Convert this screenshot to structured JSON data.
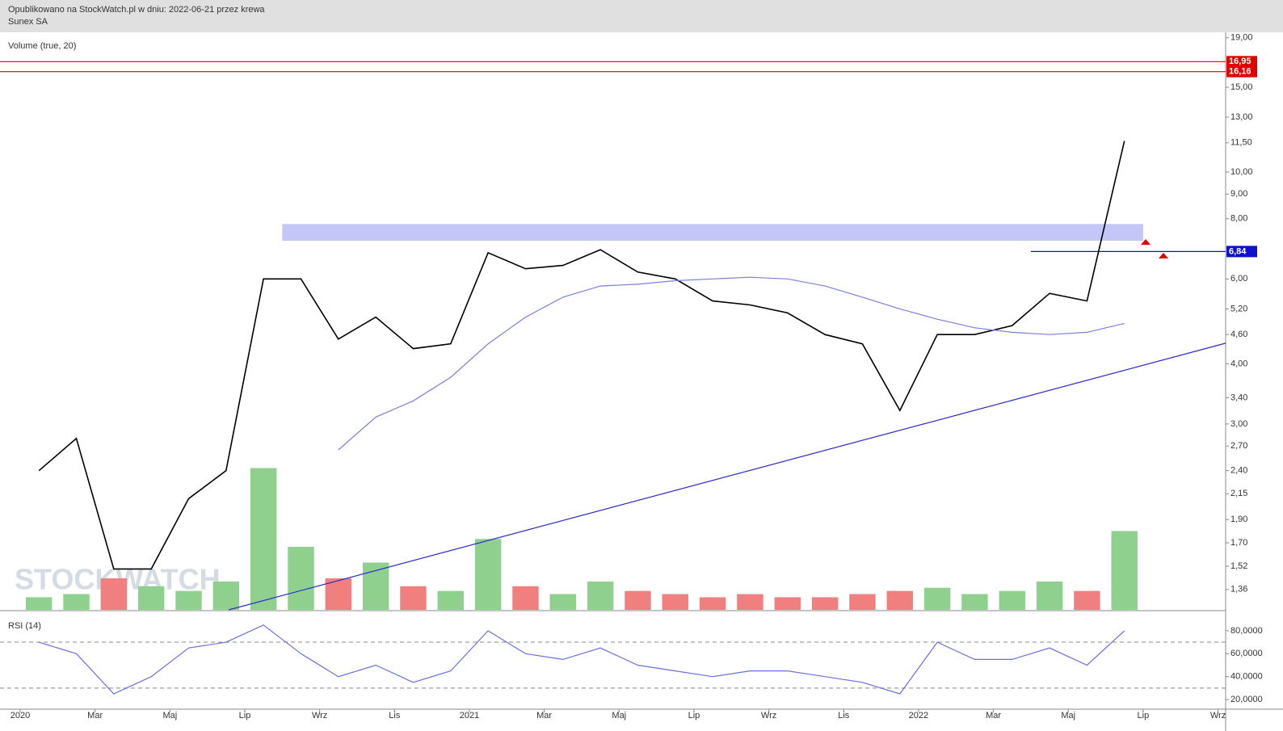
{
  "header": {
    "published": "Opublikowano na StockWatch.pl w dniu: 2022-06-21 przez krewa",
    "symbol": "Sunex SA"
  },
  "watermark": "STOCKWATCH",
  "chart_data": [
    {
      "type": "line",
      "log_scale": true,
      "ylim": [
        1.234,
        19.5
      ],
      "yticks": [
        {
          "value": 19,
          "label": "19,00"
        },
        {
          "value": 15,
          "label": "15,00"
        },
        {
          "value": 13,
          "label": "13,00"
        },
        {
          "value": 11.5,
          "label": "11,50"
        },
        {
          "value": 10,
          "label": "10,00"
        },
        {
          "value": 9,
          "label": "9,00"
        },
        {
          "value": 8,
          "label": "8,00"
        },
        {
          "value": 6,
          "label": "6,00"
        },
        {
          "value": 5.2,
          "label": "5,20"
        },
        {
          "value": 4.6,
          "label": "4,60"
        },
        {
          "value": 4,
          "label": "4,00"
        },
        {
          "value": 3.4,
          "label": "3,40"
        },
        {
          "value": 3,
          "label": "3,00"
        },
        {
          "value": 2.7,
          "label": "2,70"
        },
        {
          "value": 2.4,
          "label": "2,40"
        },
        {
          "value": 2.15,
          "label": "2,15"
        },
        {
          "value": 1.9,
          "label": "1,90"
        },
        {
          "value": 1.7,
          "label": "1,70"
        },
        {
          "value": 1.52,
          "label": "1,52"
        },
        {
          "value": 1.36,
          "label": "1,36"
        }
      ],
      "x": [
        "2020-01",
        "2020-02",
        "2020-03",
        "2020-04",
        "2020-05",
        "2020-06",
        "2020-07",
        "2020-08",
        "2020-09",
        "2020-10",
        "2020-11",
        "2020-12",
        "2021-01",
        "2021-02",
        "2021-03",
        "2021-04",
        "2021-05",
        "2021-06",
        "2021-07",
        "2021-08",
        "2021-09",
        "2021-10",
        "2021-11",
        "2021-12",
        "2022-01",
        "2022-02",
        "2022-03",
        "2022-04",
        "2022-05",
        "2022-06"
      ],
      "series": [
        {
          "color": "#000000",
          "values": [
            2.4,
            2.8,
            1.5,
            1.5,
            2.1,
            2.4,
            6.0,
            6.0,
            4.5,
            5.0,
            4.3,
            4.4,
            6.8,
            6.3,
            6.4,
            6.9,
            6.2,
            6.0,
            5.4,
            5.3,
            5.1,
            4.6,
            4.4,
            3.2,
            4.6,
            4.6,
            4.8,
            5.6,
            5.4,
            11.6
          ]
        },
        {
          "color": "#7b7fd8",
          "values": [
            null,
            null,
            null,
            null,
            null,
            null,
            null,
            null,
            2.65,
            3.1,
            3.35,
            3.75,
            4.4,
            5.0,
            5.5,
            5.8,
            5.85,
            5.95,
            6.0,
            6.05,
            6.0,
            5.8,
            5.5,
            5.2,
            4.95,
            4.75,
            4.65,
            4.6,
            4.65,
            4.85
          ]
        }
      ],
      "levels": [
        {
          "value": 16.95,
          "label": "16,95",
          "color": "#e00000"
        },
        {
          "value": 16.16,
          "label": "16,16",
          "color": "#e00000"
        },
        {
          "value": 6.84,
          "label": "6,84",
          "color": "#1010d0",
          "from": "2022-04"
        }
      ],
      "zone": {
        "from": "2020-08",
        "to": "2022-06",
        "low": 7.2,
        "high": 7.8,
        "color": "#c3c6f6"
      },
      "trendline": {
        "x": [
          "2020-07",
          "2021-12"
        ],
        "values": [
          1.29,
          2.91
        ],
        "color": "#2b2bc8"
      }
    },
    {
      "type": "bar",
      "title": "Volume (true, 20)",
      "ylim": [
        0,
        100
      ],
      "x": [
        "2020-01",
        "2020-02",
        "2020-03",
        "2020-04",
        "2020-05",
        "2020-06",
        "2020-07",
        "2020-08",
        "2020-09",
        "2020-10",
        "2020-11",
        "2020-12",
        "2021-01",
        "2021-02",
        "2021-03",
        "2021-04",
        "2021-05",
        "2021-06",
        "2021-07",
        "2021-08",
        "2021-09",
        "2021-10",
        "2021-11",
        "2021-12",
        "2022-01",
        "2022-02",
        "2022-03",
        "2022-04",
        "2022-05",
        "2022-06"
      ],
      "values": [
        8,
        10,
        20,
        15,
        12,
        18,
        90,
        40,
        20,
        30,
        15,
        12,
        45,
        15,
        10,
        18,
        12,
        10,
        8,
        10,
        8,
        8,
        10,
        12,
        14,
        10,
        12,
        18,
        12,
        50
      ],
      "up_color": "#8fd08f",
      "down_color": "#f08080"
    },
    {
      "type": "line",
      "title": "RSI (14)",
      "ylim": [
        11.6,
        96.8
      ],
      "yticks": [
        {
          "value": 80,
          "label": "80,0000"
        },
        {
          "value": 60,
          "label": "60,0000"
        },
        {
          "value": 40,
          "label": "40,0000"
        },
        {
          "value": 20,
          "label": "20,0000"
        }
      ],
      "levels": [
        70,
        30
      ],
      "x": [
        "2020-01",
        "2020-02",
        "2020-03",
        "2020-04",
        "2020-05",
        "2020-06",
        "2020-07",
        "2020-08",
        "2020-09",
        "2020-10",
        "2020-11",
        "2020-12",
        "2021-01",
        "2021-02",
        "2021-03",
        "2021-04",
        "2021-05",
        "2021-06",
        "2021-07",
        "2021-08",
        "2021-09",
        "2021-10",
        "2021-11",
        "2021-12",
        "2022-01",
        "2022-02",
        "2022-03",
        "2022-04",
        "2022-05",
        "2022-06"
      ],
      "series": [
        {
          "color": "#6b6fe0",
          "values": [
            70,
            60,
            25,
            40,
            65,
            70,
            85,
            60,
            40,
            50,
            35,
            45,
            80,
            60,
            55,
            65,
            50,
            45,
            40,
            45,
            45,
            40,
            35,
            25,
            70,
            55,
            55,
            65,
            50,
            80
          ]
        }
      ],
      "xticks": [
        {
          "value": "2020-01",
          "label": "2020"
        },
        {
          "value": "2020-03",
          "label": "Mar"
        },
        {
          "value": "2020-05",
          "label": "Maj"
        },
        {
          "value": "2020-07",
          "label": "Lip"
        },
        {
          "value": "2020-09",
          "label": "Wrz"
        },
        {
          "value": "2020-11",
          "label": "Lis"
        },
        {
          "value": "2021-01",
          "label": "2021"
        },
        {
          "value": "2021-03",
          "label": "Mar"
        },
        {
          "value": "2021-05",
          "label": "Maj"
        },
        {
          "value": "2021-07",
          "label": "Lip"
        },
        {
          "value": "2021-09",
          "label": "Wrz"
        },
        {
          "value": "2021-11",
          "label": "Lis"
        },
        {
          "value": "2022-01",
          "label": "2022"
        },
        {
          "value": "2022-03",
          "label": "Mar"
        },
        {
          "value": "2022-05",
          "label": "Maj"
        },
        {
          "value": "2022-07",
          "label": "Lip"
        },
        {
          "value": "2022-09",
          "label": "Wrz"
        }
      ]
    }
  ]
}
